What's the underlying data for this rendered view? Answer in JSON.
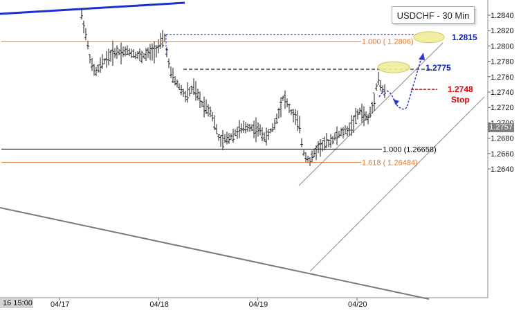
{
  "chart_data": {
    "type": "candlestick",
    "symbol_label": "USDCHF - 30 Min",
    "start_time_label": "16 15:00",
    "x_ticks": [
      {
        "label": "04/17",
        "day": 17
      },
      {
        "label": "04/18",
        "day": 18
      },
      {
        "label": "04/19",
        "day": 19
      },
      {
        "label": "04/20",
        "day": 20
      }
    ],
    "y_ticks": [
      "1.2840",
      "1.2820",
      "1.2800",
      "1.2780",
      "1.2760",
      "1.2740",
      "1.2720",
      "1.2700",
      "1.2680",
      "1.2660",
      "1.2640"
    ],
    "ylim": [
      1.2628,
      1.2857
    ],
    "last_price": "1.2757",
    "fib_lines": [
      {
        "label": "1.000 ( 1.2806)",
        "price": 1.2806,
        "color": "#e07a30"
      },
      {
        "label": "1.000 (1.26658)",
        "price": 1.26658,
        "color": "#000000"
      },
      {
        "label": "1.618 ( 1.26484)",
        "price": 1.26484,
        "color": "#e07a30"
      }
    ],
    "target_levels": [
      {
        "label": "1.2815",
        "price": 1.2815,
        "color": "#0a1fb4"
      },
      {
        "label": "1.2775",
        "price": 1.2775,
        "color": "#0a1fb4"
      }
    ],
    "stop_level": {
      "price_label": "1.2748",
      "text": "Stop",
      "price": 1.2748,
      "color": "#e00000"
    },
    "candles_summary": {
      "open": 1.2832,
      "high": 1.2857,
      "low": 1.2649,
      "last": 1.2757
    }
  }
}
